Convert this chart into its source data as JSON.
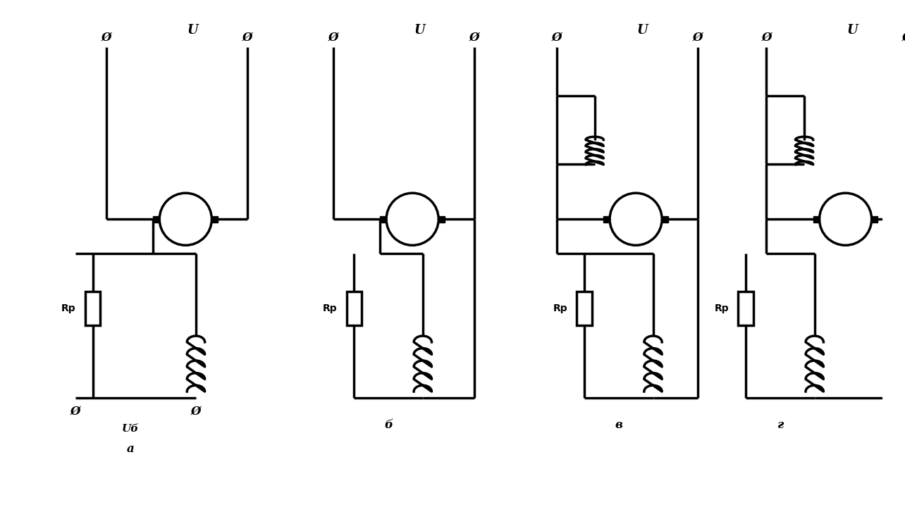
{
  "bg_color": "#ffffff",
  "line_color": "#000000",
  "line_width": 2.5,
  "fig_width": 12.84,
  "fig_height": 7.2,
  "labels": {
    "a": "a",
    "b": "б",
    "c": "в",
    "d": "г",
    "U": "U",
    "Ub": "Uб",
    "Rp": "Rр"
  }
}
